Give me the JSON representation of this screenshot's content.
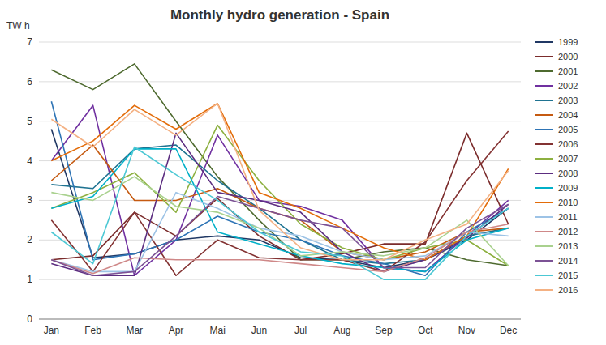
{
  "chart_data": {
    "type": "line",
    "title": "Monthly hydro generation - Spain",
    "ylabel": "TW h",
    "categories": [
      "Jan",
      "Feb",
      "Mar",
      "Apr",
      "Mai",
      "Jun",
      "Jul",
      "Aug",
      "Sep",
      "Oct",
      "Nov",
      "Dec"
    ],
    "ylim": [
      0,
      7
    ],
    "yticks": [
      0,
      1,
      2,
      3,
      4,
      5,
      6,
      7
    ],
    "grid": true,
    "legend": "right",
    "series": [
      {
        "name": "1999",
        "color": "#203864",
        "values": [
          4.8,
          1.55,
          1.65,
          2.0,
          2.1,
          2.0,
          1.55,
          1.5,
          1.3,
          1.5,
          2.0,
          2.8
        ]
      },
      {
        "name": "2000",
        "color": "#7B2C2C",
        "values": [
          1.5,
          1.6,
          2.7,
          2.1,
          3.05,
          2.1,
          1.5,
          1.65,
          1.9,
          1.9,
          4.7,
          2.4
        ]
      },
      {
        "name": "2001",
        "color": "#4E6A2F",
        "values": [
          6.3,
          5.8,
          6.45,
          5.0,
          3.6,
          2.5,
          1.5,
          1.5,
          1.7,
          1.8,
          1.5,
          1.35
        ]
      },
      {
        "name": "2002",
        "color": "#7030A0",
        "values": [
          4.0,
          5.4,
          1.1,
          2.0,
          4.65,
          3.0,
          2.85,
          2.5,
          1.3,
          1.2,
          2.1,
          3.0
        ]
      },
      {
        "name": "2003",
        "color": "#1F7391",
        "values": [
          3.4,
          3.3,
          4.3,
          4.4,
          3.5,
          2.8,
          2.0,
          1.5,
          1.4,
          1.5,
          2.1,
          2.3
        ]
      },
      {
        "name": "2004",
        "color": "#C55A11",
        "values": [
          3.5,
          4.4,
          3.0,
          3.0,
          3.3,
          2.8,
          2.5,
          1.7,
          1.5,
          1.7,
          2.2,
          2.3
        ]
      },
      {
        "name": "2005",
        "color": "#2E74B5",
        "values": [
          5.5,
          1.5,
          1.65,
          2.0,
          2.6,
          2.2,
          2.0,
          1.6,
          1.4,
          1.1,
          2.2,
          2.8
        ]
      },
      {
        "name": "2006",
        "color": "#833232",
        "values": [
          2.5,
          1.2,
          2.7,
          1.1,
          2.0,
          1.55,
          1.5,
          1.5,
          1.2,
          1.95,
          3.5,
          4.75
        ]
      },
      {
        "name": "2007",
        "color": "#8DB040",
        "values": [
          2.8,
          3.2,
          3.7,
          2.7,
          4.9,
          3.5,
          2.4,
          1.8,
          1.5,
          1.8,
          2.0,
          1.35
        ]
      },
      {
        "name": "2008",
        "color": "#5C2D80",
        "values": [
          1.4,
          1.1,
          1.1,
          4.7,
          3.2,
          3.0,
          2.7,
          1.7,
          1.2,
          1.5,
          2.05,
          2.9
        ]
      },
      {
        "name": "2009",
        "color": "#00B0C8",
        "values": [
          2.8,
          3.1,
          4.3,
          4.3,
          2.2,
          1.9,
          1.6,
          1.4,
          1.3,
          1.2,
          2.0,
          2.3
        ]
      },
      {
        "name": "2010",
        "color": "#E36C09",
        "values": [
          4.0,
          4.5,
          5.4,
          4.8,
          5.45,
          3.2,
          2.8,
          2.3,
          1.8,
          1.5,
          2.1,
          3.8
        ]
      },
      {
        "name": "2011",
        "color": "#9DC3E6",
        "values": [
          1.5,
          1.2,
          1.2,
          3.2,
          2.8,
          2.3,
          2.1,
          1.7,
          1.5,
          1.6,
          2.2,
          2.1
        ]
      },
      {
        "name": "2012",
        "color": "#CF8888",
        "values": [
          1.5,
          1.15,
          1.55,
          1.5,
          1.5,
          1.5,
          1.4,
          1.3,
          1.2,
          1.55,
          2.2,
          2.4
        ]
      },
      {
        "name": "2013",
        "color": "#A9D18E",
        "values": [
          3.2,
          3.0,
          3.6,
          2.85,
          2.7,
          2.3,
          1.6,
          1.7,
          1.6,
          1.8,
          2.5,
          1.35
        ]
      },
      {
        "name": "2014",
        "color": "#7C5295",
        "values": [
          1.5,
          1.1,
          1.2,
          2.1,
          3.1,
          2.8,
          2.5,
          2.3,
          1.3,
          1.3,
          2.3,
          2.9
        ]
      },
      {
        "name": "2015",
        "color": "#4CC8D4",
        "values": [
          2.2,
          1.4,
          4.35,
          3.65,
          3.0,
          2.2,
          1.7,
          1.6,
          1.0,
          1.0,
          2.1,
          2.8
        ]
      },
      {
        "name": "2016",
        "color": "#F4B183",
        "values": [
          5.05,
          4.35,
          5.3,
          4.65,
          5.45,
          2.75,
          1.8,
          1.5,
          1.5,
          2.0,
          2.4,
          3.75
        ]
      }
    ]
  }
}
